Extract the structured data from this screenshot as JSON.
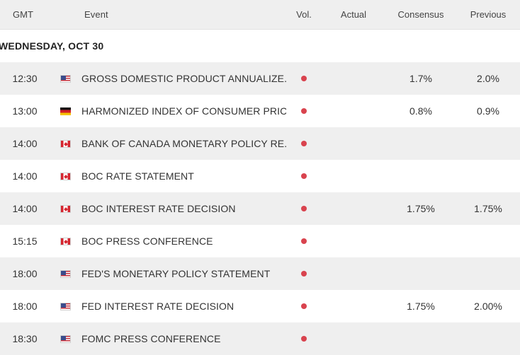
{
  "header": {
    "gmt": "GMT",
    "event": "Event",
    "vol": "Vol.",
    "actual": "Actual",
    "consensus": "Consensus",
    "previous": "Previous"
  },
  "date_label": "WEDNESDAY, OCT 30",
  "colors": {
    "vol_dot": "#d9434e",
    "row_shade": "#efefef"
  },
  "events": [
    {
      "time": "12:30",
      "flag": "us-flag-icon",
      "event": "GROSS DOMESTIC PRODUCT ANNUALIZE...",
      "actual": "",
      "consensus": "1.7%",
      "previous": "2.0%"
    },
    {
      "time": "13:00",
      "flag": "de-flag-icon",
      "event": "HARMONIZED INDEX OF CONSUMER PRIC...",
      "actual": "",
      "consensus": "0.8%",
      "previous": "0.9%"
    },
    {
      "time": "14:00",
      "flag": "ca-flag-icon",
      "event": "BANK OF CANADA MONETARY POLICY RE...",
      "actual": "",
      "consensus": "",
      "previous": ""
    },
    {
      "time": "14:00",
      "flag": "ca-flag-icon",
      "event": "BOC RATE STATEMENT",
      "actual": "",
      "consensus": "",
      "previous": ""
    },
    {
      "time": "14:00",
      "flag": "ca-flag-icon",
      "event": "BOC INTEREST RATE DECISION",
      "actual": "",
      "consensus": "1.75%",
      "previous": "1.75%"
    },
    {
      "time": "15:15",
      "flag": "ca-flag-icon",
      "event": "BOC PRESS CONFERENCE",
      "actual": "",
      "consensus": "",
      "previous": ""
    },
    {
      "time": "18:00",
      "flag": "us-flag-icon",
      "event": "FED'S MONETARY POLICY STATEMENT",
      "actual": "",
      "consensus": "",
      "previous": ""
    },
    {
      "time": "18:00",
      "flag": "us-flag-icon",
      "event": "FED INTEREST RATE DECISION",
      "actual": "",
      "consensus": "1.75%",
      "previous": "2.00%"
    },
    {
      "time": "18:30",
      "flag": "us-flag-icon",
      "event": "FOMC PRESS CONFERENCE",
      "actual": "",
      "consensus": "",
      "previous": ""
    }
  ]
}
